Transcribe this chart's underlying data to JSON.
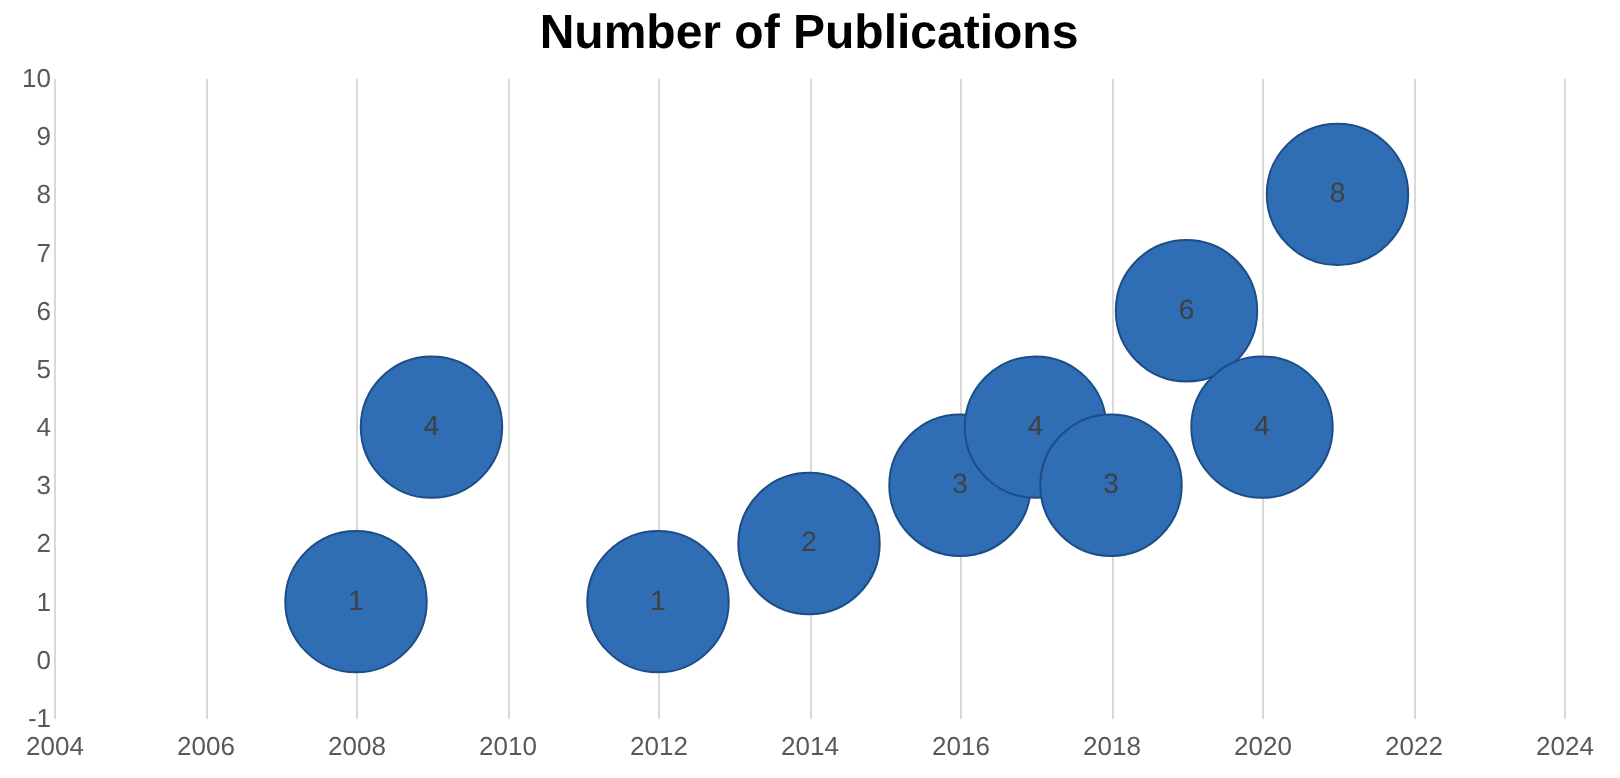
{
  "chart_data": {
    "type": "bubble",
    "title": "Number of Publications",
    "x": [
      2008,
      2009,
      2012,
      2014,
      2016,
      2017,
      2018,
      2019,
      2020,
      2021
    ],
    "series": [
      {
        "color": "#2f6db5",
        "values": [
          1,
          4,
          1,
          2,
          3,
          4,
          3,
          6,
          4,
          8
        ],
        "sizes": [
          1,
          1,
          1,
          1,
          1,
          1,
          1,
          1,
          1,
          1
        ]
      }
    ],
    "xlim": [
      2004,
      2024
    ],
    "xticks": [
      2004,
      2006,
      2008,
      2010,
      2012,
      2014,
      2016,
      2018,
      2020,
      2022,
      2024
    ],
    "ylim": [
      -1,
      10
    ],
    "yticks": [
      -1,
      0,
      1,
      2,
      3,
      4,
      5,
      6,
      7,
      8,
      9,
      10
    ],
    "grid": "x",
    "data_labels": true
  }
}
